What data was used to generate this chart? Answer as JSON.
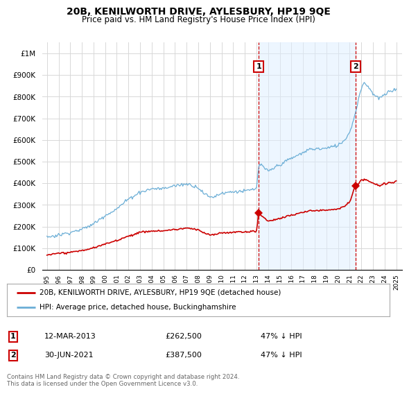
{
  "title": "20B, KENILWORTH DRIVE, AYLESBURY, HP19 9QE",
  "subtitle": "Price paid vs. HM Land Registry's House Price Index (HPI)",
  "legend_line1": "20B, KENILWORTH DRIVE, AYLESBURY, HP19 9QE (detached house)",
  "legend_line2": "HPI: Average price, detached house, Buckinghamshire",
  "footnote": "Contains HM Land Registry data © Crown copyright and database right 2024.\nThis data is licensed under the Open Government Licence v3.0.",
  "annotation1_date": "12-MAR-2013",
  "annotation1_price": "£262,500",
  "annotation1_hpi": "47% ↓ HPI",
  "annotation2_date": "30-JUN-2021",
  "annotation2_price": "£387,500",
  "annotation2_hpi": "47% ↓ HPI",
  "sale1_x": 2013.19,
  "sale1_y": 262500,
  "sale2_x": 2021.49,
  "sale2_y": 387500,
  "hpi_color": "#6baed6",
  "hpi_fill_color": "#ddeeff",
  "price_color": "#cc0000",
  "vline_color": "#cc0000",
  "annotation_box_color": "#cc0000",
  "background_color": "#ffffff",
  "grid_color": "#d8d8d8",
  "ylim": [
    0,
    1050000
  ],
  "xlim_start": 1994.6,
  "xlim_end": 2025.5,
  "yticks": [
    0,
    100000,
    200000,
    300000,
    400000,
    500000,
    600000,
    700000,
    800000,
    900000,
    1000000
  ],
  "ytick_labels": [
    "£0",
    "£100K",
    "£200K",
    "£300K",
    "£400K",
    "£500K",
    "£600K",
    "£700K",
    "£800K",
    "£900K",
    "£1M"
  ],
  "xticks": [
    1995,
    1996,
    1997,
    1998,
    1999,
    2000,
    2001,
    2002,
    2003,
    2004,
    2005,
    2006,
    2007,
    2008,
    2009,
    2010,
    2011,
    2012,
    2013,
    2014,
    2015,
    2016,
    2017,
    2018,
    2019,
    2020,
    2021,
    2022,
    2023,
    2024,
    2025
  ]
}
